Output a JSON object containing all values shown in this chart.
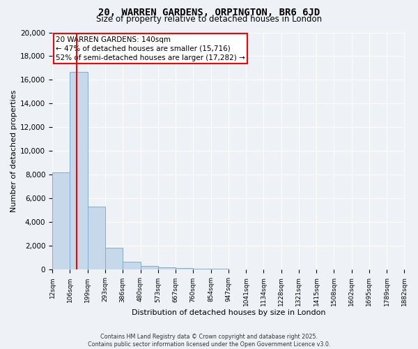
{
  "title1": "20, WARREN GARDENS, ORPINGTON, BR6 6JD",
  "title2": "Size of property relative to detached houses in London",
  "xlabel": "Distribution of detached houses by size in London",
  "ylabel": "Number of detached properties",
  "bar_heights": [
    8200,
    16700,
    5350,
    1850,
    700,
    350,
    200,
    150,
    100,
    100,
    50,
    50,
    30,
    20,
    15,
    10,
    8,
    5,
    4,
    3
  ],
  "bin_edges": [
    12,
    106,
    199,
    293,
    386,
    480,
    573,
    667,
    760,
    854,
    947,
    1041,
    1134,
    1228,
    1321,
    1415,
    1508,
    1602,
    1695,
    1789,
    1882
  ],
  "bar_color": "#c8d8eb",
  "bar_edge_color": "#7faed0",
  "red_line_x": 140,
  "annotation_box_text": "20 WARREN GARDENS: 140sqm\n← 47% of detached houses are smaller (15,716)\n52% of semi-detached houses are larger (17,282) →",
  "ylim": [
    0,
    20000
  ],
  "yticks": [
    0,
    2000,
    4000,
    6000,
    8000,
    10000,
    12000,
    14000,
    16000,
    18000,
    20000
  ],
  "background_color": "#eef2f7",
  "plot_bg_color": "#eef2f7",
  "grid_color": "#ffffff",
  "footer_line1": "Contains HM Land Registry data © Crown copyright and database right 2025.",
  "footer_line2": "Contains public sector information licensed under the Open Government Licence v3.0."
}
